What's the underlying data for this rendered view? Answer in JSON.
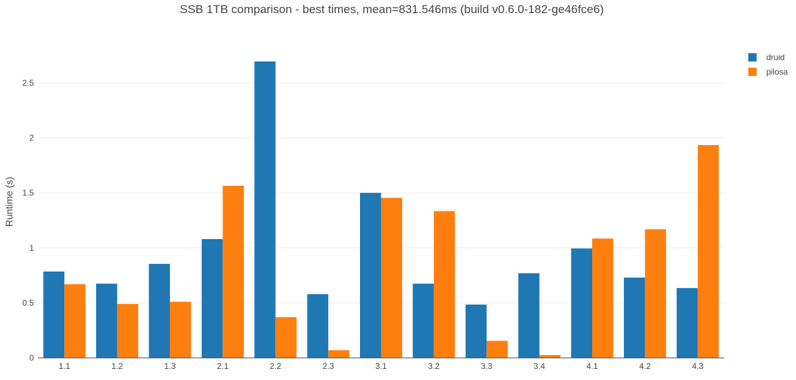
{
  "chart_data": {
    "type": "bar",
    "title": "SSB 1TB comparison - best times, mean=831.546ms (build v0.6.0-182-ge46fce6)",
    "xlabel": "",
    "ylabel": "Runtime (s)",
    "ylim": [
      0,
      2.8
    ],
    "yticks": [
      0,
      0.5,
      1,
      1.5,
      2,
      2.5
    ],
    "ytick_labels": [
      "0",
      "0.5",
      "1",
      "1.5",
      "2",
      "2.5"
    ],
    "grid": true,
    "legend_position": "top-right",
    "categories": [
      "1.1",
      "1.2",
      "1.3",
      "2.1",
      "2.2",
      "2.3",
      "3.1",
      "3.2",
      "3.3",
      "3.4",
      "4.1",
      "4.2",
      "4.3"
    ],
    "series": [
      {
        "name": "druid",
        "color": "#1f77b4",
        "values": [
          0.785,
          0.675,
          0.855,
          1.08,
          2.695,
          0.58,
          1.5,
          0.675,
          0.485,
          0.77,
          0.995,
          0.73,
          0.635
        ]
      },
      {
        "name": "pilosa",
        "color": "#ff7f0e",
        "values": [
          0.67,
          0.49,
          0.51,
          1.565,
          0.37,
          0.07,
          1.455,
          1.335,
          0.155,
          0.025,
          1.085,
          1.17,
          1.935
        ]
      }
    ]
  }
}
